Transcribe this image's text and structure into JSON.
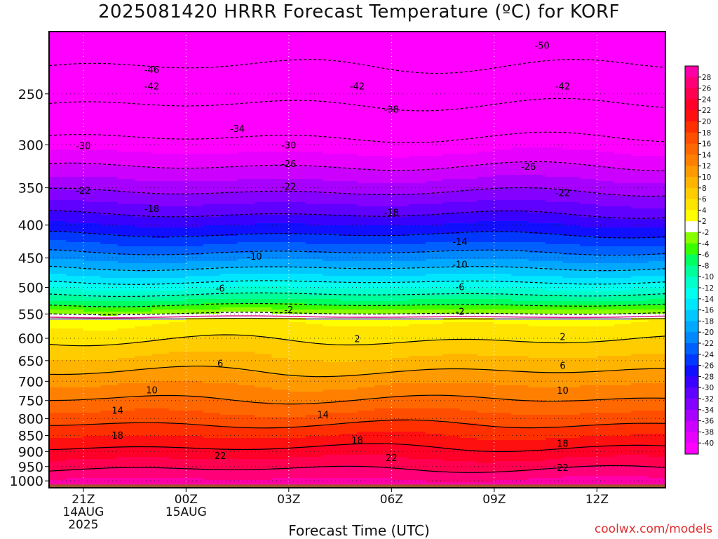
{
  "title": "2025081420 HRRR Forecast Temperature (ºC) for KORF",
  "xlabel": "Forecast Time (UTC)",
  "credit": "coolwx.com/models",
  "chart_data": {
    "type": "heatmap",
    "title": "2025081420 HRRR Forecast Temperature (ºC) for KORF",
    "xlabel": "Forecast Time (UTC)",
    "ylabel": "",
    "x_range_hours": [
      -1,
      17
    ],
    "y_range_hpa": [
      200,
      1025
    ],
    "y_scale": "log",
    "grid": true,
    "x_ticks": [
      {
        "hour": 0,
        "lines": [
          "21Z",
          "14AUG",
          "2025"
        ]
      },
      {
        "hour": 3,
        "lines": [
          "00Z",
          "15AUG"
        ]
      },
      {
        "hour": 6,
        "lines": [
          "03Z"
        ]
      },
      {
        "hour": 9,
        "lines": [
          "06Z"
        ]
      },
      {
        "hour": 12,
        "lines": [
          "09Z"
        ]
      },
      {
        "hour": 15,
        "lines": [
          "12Z"
        ]
      }
    ],
    "y_ticks": [
      250,
      300,
      350,
      400,
      450,
      500,
      550,
      600,
      650,
      700,
      750,
      800,
      850,
      900,
      950,
      1000
    ],
    "colorbar": {
      "ticks": [
        28,
        26,
        24,
        22,
        20,
        18,
        16,
        14,
        12,
        10,
        8,
        6,
        4,
        2,
        -2,
        -4,
        -6,
        -8,
        -10,
        -12,
        -14,
        -16,
        -18,
        -20,
        -22,
        -24,
        -26,
        -28,
        -30,
        -32,
        -34,
        -36,
        -38,
        -40
      ],
      "colors": [
        "#ff00a8",
        "#ff0078",
        "#ff0050",
        "#ff0028",
        "#ff1010",
        "#ff3000",
        "#ff4e00",
        "#ff6800",
        "#ff8000",
        "#ff9a00",
        "#ffb400",
        "#ffcc00",
        "#ffe400",
        "#ffff00",
        "#ffffff",
        "#88ff00",
        "#38ff00",
        "#00ff60",
        "#00ff9a",
        "#00ffcc",
        "#00ffee",
        "#00e6ff",
        "#00c8ff",
        "#00a8ff",
        "#0088ff",
        "#0060ff",
        "#0038ff",
        "#1010ff",
        "#3a00ff",
        "#6000ff",
        "#8400ff",
        "#a800ff",
        "#cc00ff",
        "#e800ff",
        "#ff00ff"
      ]
    },
    "contour_labels": [
      {
        "value": "-50",
        "hour": 13.4,
        "p": 210
      },
      {
        "value": "-46",
        "hour": 2.0,
        "p": 229
      },
      {
        "value": "-42",
        "hour": 2.0,
        "p": 243
      },
      {
        "value": "-42",
        "hour": 8.0,
        "p": 243
      },
      {
        "value": "-42",
        "hour": 14.0,
        "p": 243
      },
      {
        "value": "-38",
        "hour": 9.0,
        "p": 264
      },
      {
        "value": "-34",
        "hour": 4.5,
        "p": 283
      },
      {
        "value": "-30",
        "hour": 0.0,
        "p": 301
      },
      {
        "value": "-30",
        "hour": 6.0,
        "p": 300
      },
      {
        "value": "-26",
        "hour": 6.0,
        "p": 321
      },
      {
        "value": "-26",
        "hour": 13.0,
        "p": 324
      },
      {
        "value": "-22",
        "hour": 0.0,
        "p": 353
      },
      {
        "value": "-22",
        "hour": 6.0,
        "p": 348
      },
      {
        "value": "-22",
        "hour": 14.0,
        "p": 356
      },
      {
        "value": "-18",
        "hour": 2.0,
        "p": 377
      },
      {
        "value": "-18",
        "hour": 9.0,
        "p": 382
      },
      {
        "value": "-14",
        "hour": 11.0,
        "p": 424
      },
      {
        "value": "-10",
        "hour": 5.0,
        "p": 447
      },
      {
        "value": "-10",
        "hour": 11.0,
        "p": 460
      },
      {
        "value": "-6",
        "hour": 4.0,
        "p": 501
      },
      {
        "value": "-6",
        "hour": 11.0,
        "p": 499
      },
      {
        "value": "-2",
        "hour": 6.0,
        "p": 541
      },
      {
        "value": "-2",
        "hour": 11.0,
        "p": 545
      },
      {
        "value": "2",
        "hour": 8.0,
        "p": 601
      },
      {
        "value": "2",
        "hour": 14.0,
        "p": 596
      },
      {
        "value": "6",
        "hour": 4.0,
        "p": 656
      },
      {
        "value": "6",
        "hour": 14.0,
        "p": 661
      },
      {
        "value": "10",
        "hour": 2.0,
        "p": 722
      },
      {
        "value": "10",
        "hour": 14.0,
        "p": 723
      },
      {
        "value": "14",
        "hour": 1.0,
        "p": 776
      },
      {
        "value": "14",
        "hour": 7.0,
        "p": 788
      },
      {
        "value": "18",
        "hour": 1.0,
        "p": 849
      },
      {
        "value": "18",
        "hour": 8.0,
        "p": 864
      },
      {
        "value": "18",
        "hour": 14.0,
        "p": 874
      },
      {
        "value": "22",
        "hour": 4.0,
        "p": 913
      },
      {
        "value": "22",
        "hour": 9.0,
        "p": 920
      },
      {
        "value": "22",
        "hour": 14.0,
        "p": 953
      }
    ],
    "colors": {
      "frame": "#000000",
      "ground": "#a0522d",
      "freezing_line": "#e0208a"
    }
  }
}
